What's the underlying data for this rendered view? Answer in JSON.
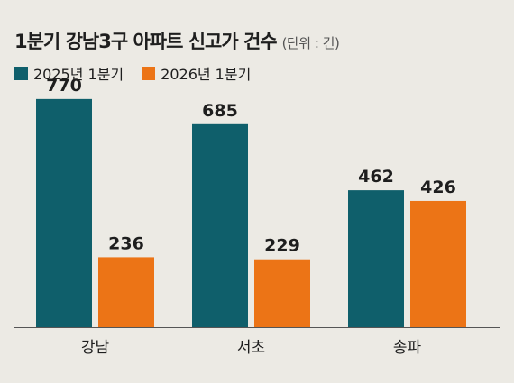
{
  "header": {
    "title": "1분기 강남3구 아파트 신고가 건수",
    "unit": "(단위 : 건)"
  },
  "colors": {
    "series_2025": "#0f5f6b",
    "series_2026": "#ec7416",
    "background": "#eceae4",
    "baseline": "#555555"
  },
  "chart_data": {
    "type": "bar",
    "title": "1분기 강남3구 아파트 신고가 건수",
    "unit": "(단위 : 건)",
    "categories": [
      "강남",
      "서초",
      "송파"
    ],
    "series": [
      {
        "name": "2025년 1분기",
        "values": [
          770,
          685,
          462
        ]
      },
      {
        "name": "2026년 1분기",
        "values": [
          236,
          229,
          426
        ]
      }
    ],
    "ylim": [
      0,
      800
    ],
    "legend_position": "top-left",
    "grid": false
  }
}
